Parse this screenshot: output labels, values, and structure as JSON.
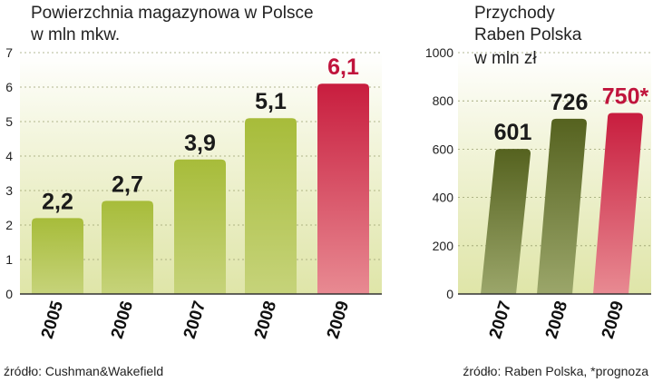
{
  "chart_data": [
    {
      "type": "bar",
      "title": [
        "Powierzchnia magazynowa w Polsce",
        "w mln mkw."
      ],
      "categories": [
        "2005",
        "2006",
        "2007",
        "2008",
        "2009"
      ],
      "values": [
        2.2,
        2.7,
        3.9,
        5.1,
        6.1
      ],
      "value_labels": [
        "2,2",
        "2,7",
        "3,9",
        "5,1",
        "6,1"
      ],
      "yticks": [
        "0",
        "1",
        "2",
        "3",
        "4",
        "5",
        "6",
        "7"
      ],
      "ylim": [
        0,
        7
      ],
      "highlight": [
        false,
        false,
        false,
        false,
        true
      ],
      "colors": {
        "bar": "#a7bc3a",
        "highlight": "#d63a52",
        "label": "#1a1a1a",
        "highlight_label": "#c0143c",
        "plot_bg": "#e7ebbe"
      },
      "source": "źródło: Cushman&Wakefield"
    },
    {
      "type": "bar",
      "title": [
        "Przychody",
        "Raben Polska",
        "w mln zł"
      ],
      "categories": [
        "2007",
        "2008",
        "2009"
      ],
      "values": [
        601,
        726,
        750
      ],
      "value_labels": [
        "601",
        "726",
        "750*"
      ],
      "yticks": [
        "0",
        "200",
        "400",
        "600",
        "800",
        "1000"
      ],
      "ylim": [
        0,
        1000
      ],
      "highlight": [
        false,
        false,
        true
      ],
      "colors": {
        "bar": "#5e6b25",
        "highlight": "#d63a52",
        "label": "#1a1a1a",
        "highlight_label": "#c0143c",
        "plot_bg": "#e7ebbe"
      },
      "source": "źródło: Raben Polska, *prognoza"
    }
  ]
}
